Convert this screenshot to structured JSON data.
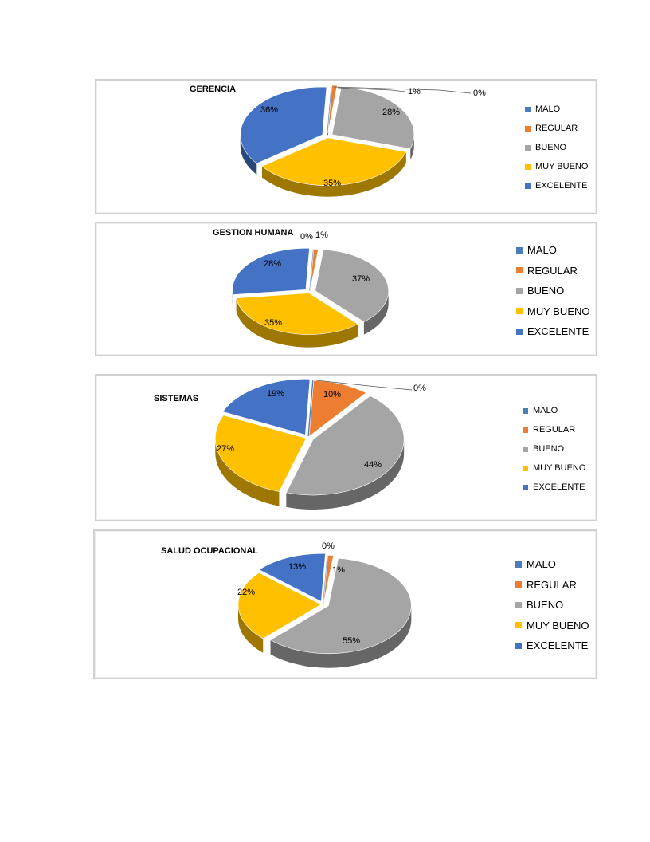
{
  "colors": {
    "MALO": "#4a7ebb",
    "REGULAR": "#ed7d31",
    "BUENO": "#a5a5a5",
    "MUY BUENO": "#ffc000",
    "EXCELENTE": "#4472c4"
  },
  "legend_labels": [
    "MALO",
    "REGULAR",
    "BUENO",
    "MUY BUENO",
    "EXCELENTE"
  ],
  "chart_data": [
    {
      "type": "pie",
      "title": "GERENCIA",
      "categories": [
        "MALO",
        "REGULAR",
        "BUENO",
        "MUY BUENO",
        "EXCELENTE"
      ],
      "values": [
        0,
        1,
        28,
        35,
        36
      ],
      "labels": [
        "0%",
        "1%",
        "28%",
        "35%",
        "36%"
      ],
      "legend_position": "right"
    },
    {
      "type": "pie",
      "title": "GESTION HUMANA",
      "categories": [
        "MALO",
        "REGULAR",
        "BUENO",
        "MUY BUENO",
        "EXCELENTE"
      ],
      "values": [
        0,
        1,
        37,
        35,
        28
      ],
      "labels": [
        "0%",
        "1%",
        "37%",
        "35%",
        "28%"
      ],
      "legend_position": "right"
    },
    {
      "type": "pie",
      "title": "SISTEMAS",
      "categories": [
        "MALO",
        "REGULAR",
        "BUENO",
        "MUY BUENO",
        "EXCELENTE"
      ],
      "values": [
        0,
        10,
        44,
        27,
        19
      ],
      "labels": [
        "0%",
        "10%",
        "44%",
        "27%",
        "19%"
      ],
      "legend_position": "right"
    },
    {
      "type": "pie",
      "title": "SALUD OCUPACIONAL",
      "categories": [
        "MALO",
        "REGULAR",
        "BUENO",
        "MUY BUENO",
        "EXCELENTE"
      ],
      "values": [
        0,
        1,
        55,
        22,
        13
      ],
      "labels": [
        "0%",
        "1%",
        "55%",
        "22%",
        "13%"
      ],
      "legend_position": "right"
    }
  ]
}
